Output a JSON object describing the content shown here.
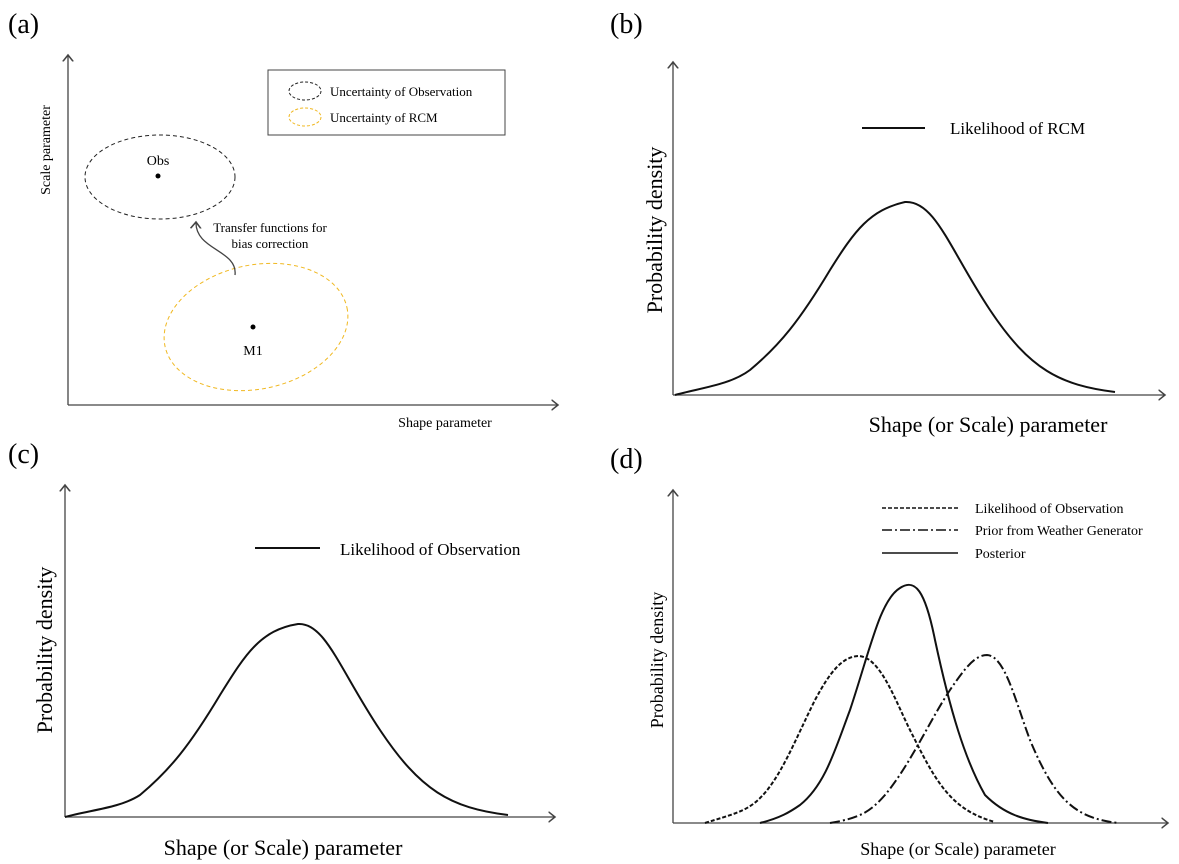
{
  "panels": [
    {
      "label": "(a)",
      "x_axis": "Shape parameter",
      "y_axis": "Scale parameter",
      "legend": [
        "Uncertainty of Observation",
        "Uncertainty of RCM"
      ],
      "points": [
        "Obs",
        "M1"
      ],
      "annotation": [
        "Transfer functions for",
        "bias correction"
      ]
    },
    {
      "label": "(b)",
      "x_axis": "Shape (or Scale) parameter",
      "y_axis": "Probability density",
      "legend": [
        "Likelihood of RCM"
      ]
    },
    {
      "label": "(c)",
      "x_axis": "Shape (or Scale) parameter",
      "y_axis": "Probability density",
      "legend": [
        "Likelihood of Observation"
      ]
    },
    {
      "label": "(d)",
      "x_axis": "Shape (or Scale) parameter",
      "y_axis": "Probability density",
      "legend": [
        "Likelihood of Observation",
        "Prior from Weather Generator",
        "Posterior"
      ]
    }
  ]
}
